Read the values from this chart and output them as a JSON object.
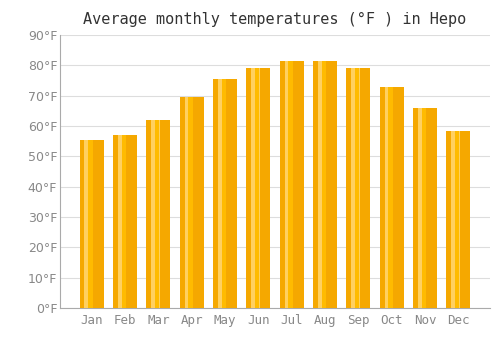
{
  "title": "Average monthly temperatures (°F ) in Hepo",
  "months": [
    "Jan",
    "Feb",
    "Mar",
    "Apr",
    "May",
    "Jun",
    "Jul",
    "Aug",
    "Sep",
    "Oct",
    "Nov",
    "Dec"
  ],
  "values": [
    55.5,
    57,
    62,
    69.5,
    75.5,
    79,
    81.5,
    81.5,
    79,
    73,
    66,
    58.5
  ],
  "bar_color_dark": "#F5A800",
  "bar_color_mid": "#FFBB00",
  "bar_color_light": "#FFD060",
  "ylim": [
    0,
    90
  ],
  "yticks": [
    0,
    10,
    20,
    30,
    40,
    50,
    60,
    70,
    80,
    90
  ],
  "background_color": "#FFFFFF",
  "plot_bg_color": "#FFFFFF",
  "grid_color": "#DDDDDD",
  "title_fontsize": 11,
  "tick_fontsize": 9,
  "tick_color": "#888888",
  "spine_color": "#AAAAAA"
}
